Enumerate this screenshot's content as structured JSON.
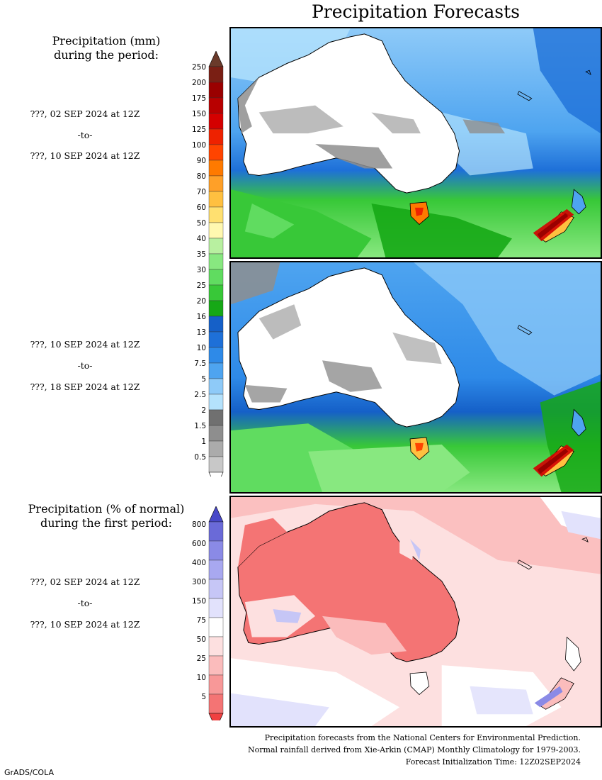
{
  "header": {
    "title": "Precipitation Forecasts"
  },
  "left_panel": {
    "mm_title_line1": "Precipitation (mm)",
    "mm_title_line2": "during the period:",
    "pct_title_line1": "Precipitation (% of normal)",
    "pct_title_line2": "during the first period:"
  },
  "periods": [
    {
      "start": "???, 02 SEP 2024 at 12Z",
      "sep": "-to-",
      "end": "???, 10 SEP 2024 at 12Z"
    },
    {
      "start": "???, 10 SEP 2024 at 12Z",
      "sep": "-to-",
      "end": "???, 18 SEP 2024 at 12Z"
    },
    {
      "start": "???, 02 SEP 2024 at 12Z",
      "sep": "-to-",
      "end": "???, 10 SEP 2024 at 12Z"
    }
  ],
  "mm_legend": {
    "labels": [
      "250",
      "200",
      "175",
      "150",
      "125",
      "100",
      "90",
      "80",
      "70",
      "60",
      "50",
      "40",
      "35",
      "30",
      "25",
      "20",
      "16",
      "13",
      "10",
      "7.5",
      "5",
      "2.5",
      "2",
      "1.5",
      "1",
      "0.5"
    ],
    "colors": [
      "#7a1f14",
      "#9a0000",
      "#b80000",
      "#d40000",
      "#ee2200",
      "#ff4400",
      "#ff7a00",
      "#ffa028",
      "#ffc040",
      "#ffe070",
      "#fff8b0",
      "#b8f0a0",
      "#88e880",
      "#60dc60",
      "#38c838",
      "#16a816",
      "#1560c8",
      "#1e70d8",
      "#2e8ae8",
      "#4ea4f0",
      "#8ecaf8",
      "#b4e2fc",
      "#707070",
      "#8e8e8e",
      "#ababab",
      "#c8c8c8"
    ],
    "top_arrow_color": "#6a3a2a"
  },
  "pct_legend": {
    "labels": [
      "800",
      "600",
      "400",
      "300",
      "150",
      "75",
      "50",
      "25",
      "10",
      "5"
    ],
    "colors": [
      "#6a6ad8",
      "#8a8ae6",
      "#a8a8f0",
      "#c6c6f6",
      "#e2e2fc",
      "#ffffff",
      "#fde0e0",
      "#fbbcbc",
      "#f89898",
      "#f47474"
    ],
    "top_arrow_color": "#4848c8",
    "bottom_arrow_color": "#f04040"
  },
  "footer": {
    "line1": "Precipitation forecasts from the National Centers for Environmental Prediction.",
    "line2": "Normal rainfall derived from Xie-Arkin (CMAP) Monthly Climatology for 1979-2003.",
    "line3": "Forecast Initialization Time: 12Z02SEP2024"
  },
  "credit": "GrADS/COLA"
}
